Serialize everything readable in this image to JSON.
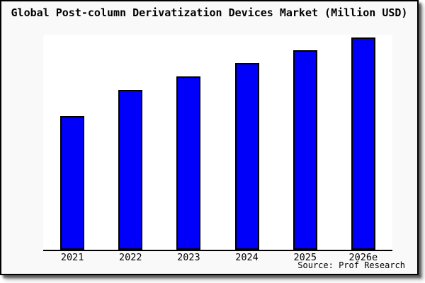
{
  "chart_data": {
    "type": "bar",
    "title": "Global Post-column Derivatization Devices Market (Million USD)",
    "categories": [
      "2021",
      "2022",
      "2023",
      "2024",
      "2025",
      "2026e"
    ],
    "values": [
      63,
      75.3,
      81.7,
      88,
      94,
      100
    ],
    "values_note": "relative bar heights as % of tallest bar; chart shows no y-axis scale or data labels",
    "xlabel": "",
    "ylabel": "",
    "grid": false,
    "legend": false,
    "bar_color": "#0000fa",
    "bar_border_color": "#000000",
    "axis_color": "#000000",
    "plot_background": "#ffffff",
    "panel_background": "#f9f9f9",
    "source_note": "Source: Prof Research"
  }
}
